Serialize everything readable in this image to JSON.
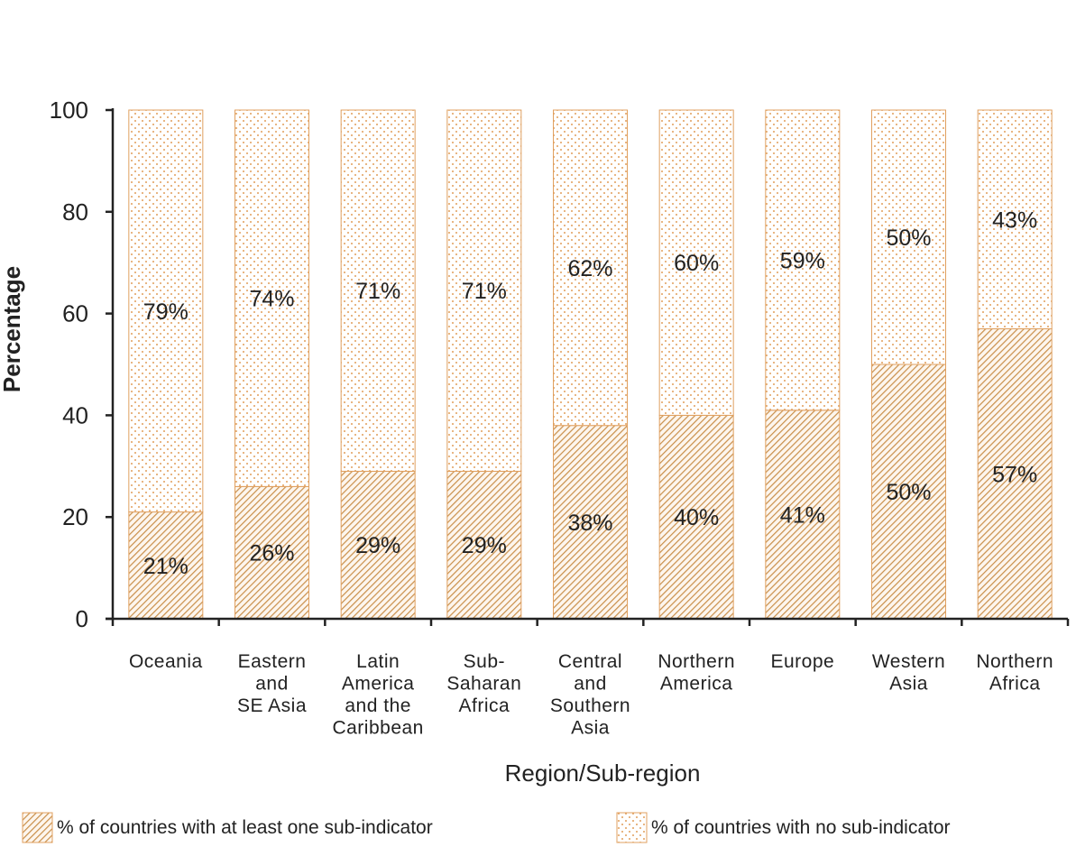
{
  "chart_data": {
    "type": "bar",
    "stacked": true,
    "title": "",
    "xlabel": "Region/Sub-region",
    "ylabel": "Percentage",
    "ylim": [
      0,
      100
    ],
    "yticks": [
      0,
      20,
      40,
      60,
      80,
      100
    ],
    "grid": false,
    "legend_position": "bottom",
    "categories": [
      [
        "Oceania"
      ],
      [
        "Eastern",
        "and",
        "SE Asia"
      ],
      [
        "Latin",
        "America",
        "and the",
        "Caribbean"
      ],
      [
        "Sub-",
        "Saharan",
        "Africa"
      ],
      [
        "Central",
        "and",
        "Southern",
        "Asia"
      ],
      [
        "Northern",
        "America"
      ],
      [
        "Europe"
      ],
      [
        "Western",
        "Asia"
      ],
      [
        "Northern",
        "Africa"
      ]
    ],
    "series": [
      {
        "name": "% of countries with at least one sub-indicator",
        "pattern": "hatch",
        "values": [
          21,
          26,
          29,
          29,
          38,
          40,
          41,
          50,
          57
        ],
        "labels": [
          "21%",
          "26%",
          "29%",
          "29%",
          "38%",
          "40%",
          "41%",
          "50%",
          "57%"
        ]
      },
      {
        "name": "% of countries with no sub-indicator",
        "pattern": "dots",
        "values": [
          79,
          74,
          71,
          71,
          62,
          60,
          59,
          50,
          43
        ],
        "labels": [
          "79%",
          "74%",
          "71%",
          "71%",
          "62%",
          "60%",
          "59%",
          "50%",
          "43%"
        ]
      }
    ],
    "colors": {
      "accent": "#e0a060",
      "hatch_line": "#c98f4a",
      "dot": "#e2a261",
      "axis": "#222222"
    }
  }
}
